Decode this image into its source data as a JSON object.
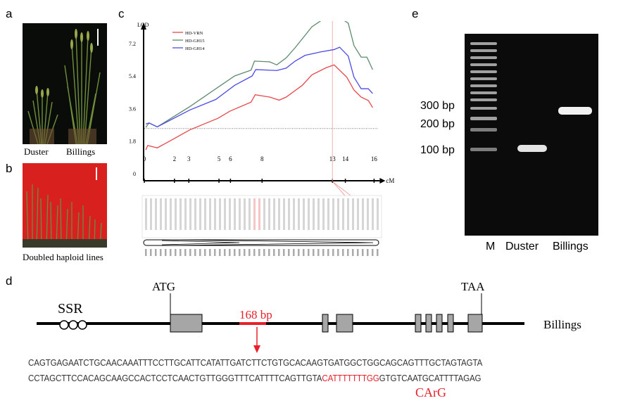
{
  "panels": {
    "a": "a",
    "b": "b",
    "c": "c",
    "d": "d",
    "e": "e"
  },
  "panel_a": {
    "labels": [
      "Duster",
      "Billings"
    ]
  },
  "panel_b": {
    "caption": "Doubled haploid lines"
  },
  "chart_data": {
    "type": "line",
    "ylabel": "LOD",
    "xlabel": "cM",
    "ylim": [
      0,
      9
    ],
    "xlim": [
      0,
      16
    ],
    "yticks": [
      "0",
      "1.8",
      "3.6",
      "5.4",
      "7.2",
      "9"
    ],
    "marker_labels": [
      {
        "label": "0",
        "x": 0
      },
      {
        "label": "2",
        "x": 2.1
      },
      {
        "label": "3",
        "x": 3.1
      },
      {
        "label": "5",
        "x": 5.2
      },
      {
        "label": "6",
        "x": 6
      },
      {
        "label": "8",
        "x": 8.2
      },
      {
        "label": "13",
        "x": 13.1
      },
      {
        "label": "14",
        "x": 14
      },
      {
        "label": "16",
        "x": 16
      }
    ],
    "threshold": 2.5,
    "peak_marker_x": 13.1,
    "legend": "top-left",
    "series": [
      {
        "name": "HD-VRN",
        "color": "#e8474b",
        "points": [
          [
            0.1,
            1.32
          ],
          [
            0.24,
            1.56
          ],
          [
            0.9,
            1.43
          ],
          [
            1.55,
            1.71
          ],
          [
            3.18,
            2.43
          ],
          [
            5.14,
            3.07
          ],
          [
            5.96,
            3.46
          ],
          [
            7.43,
            3.96
          ],
          [
            7.72,
            4.37
          ],
          [
            8.73,
            4.24
          ],
          [
            9.39,
            4.07
          ],
          [
            9.88,
            4.24
          ],
          [
            11.0,
            4.89
          ],
          [
            11.67,
            5.47
          ],
          [
            12.65,
            5.86
          ],
          [
            13.22,
            6.02
          ],
          [
            14.1,
            5.34
          ],
          [
            14.6,
            4.63
          ],
          [
            15.1,
            4.24
          ],
          [
            15.6,
            4.05
          ],
          [
            15.9,
            3.66
          ]
        ]
      },
      {
        "name": "HD-GH15",
        "color": "#5e8a6c",
        "points": [
          [
            0.1,
            2.56
          ],
          [
            0.33,
            2.81
          ],
          [
            0.9,
            2.59
          ],
          [
            3.18,
            3.72
          ],
          [
            4.98,
            4.7
          ],
          [
            6.29,
            5.41
          ],
          [
            7.43,
            5.73
          ],
          [
            7.67,
            6.23
          ],
          [
            8.73,
            6.19
          ],
          [
            9.22,
            6.02
          ],
          [
            9.88,
            6.41
          ],
          [
            10.5,
            6.97
          ],
          [
            11.67,
            8.13
          ],
          [
            12.65,
            8.65
          ],
          [
            13.55,
            8.66
          ],
          [
            14.2,
            8.33
          ],
          [
            14.6,
            7.09
          ],
          [
            15.1,
            6.45
          ],
          [
            15.5,
            6.45
          ],
          [
            15.9,
            5.76
          ]
        ]
      },
      {
        "name": "HD-GH14",
        "color": "#4a4ae8",
        "points": [
          [
            0.1,
            2.75
          ],
          [
            0.33,
            2.81
          ],
          [
            0.9,
            2.59
          ],
          [
            3.18,
            3.53
          ],
          [
            4.98,
            4.11
          ],
          [
            6.29,
            4.89
          ],
          [
            7.51,
            5.41
          ],
          [
            7.76,
            5.76
          ],
          [
            9.22,
            5.71
          ],
          [
            9.88,
            5.84
          ],
          [
            10.5,
            6.23
          ],
          [
            11.2,
            6.55
          ],
          [
            12.3,
            6.74
          ],
          [
            13.22,
            6.87
          ],
          [
            13.6,
            7.0
          ],
          [
            14.2,
            6.51
          ],
          [
            14.6,
            5.34
          ],
          [
            15.1,
            4.7
          ],
          [
            15.6,
            4.7
          ],
          [
            15.9,
            4.44
          ]
        ]
      }
    ]
  },
  "panel_d": {
    "ssr": "SSR",
    "atg": "ATG",
    "taa": "TAA",
    "insertion": "168 bp",
    "line": "Billings",
    "seq1": "CAGTGAGAATCTGCAACAAATTTCCTTGCATTCATATTGATCTTCTGTGCACAAGTGATGGCTGGCAGCAGTTTGCTAGTAGTA",
    "seq2_pre": "CCTAGCTTCCACAGCAAGCCACTCCTCAACTGTTGGGTTTCATTTTCAGTTGTA",
    "seq2_carg": "CATTTTTTTGG",
    "seq2_post": "GTGTCAATGCATTTTAGAG",
    "carg": "CArG",
    "highlight_color": "#e8202a"
  },
  "panel_e": {
    "sizes": [
      "300 bp",
      "200 bp",
      "100 bp"
    ],
    "lanes": [
      "M",
      "Duster",
      "Billings"
    ]
  }
}
